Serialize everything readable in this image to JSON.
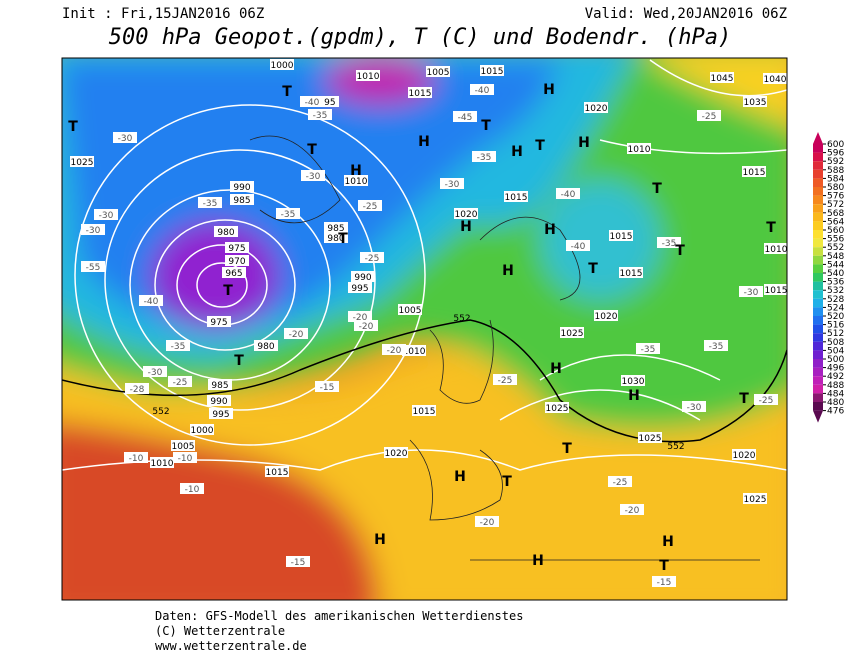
{
  "header": {
    "init": "Init : Fri,15JAN2016 06Z",
    "valid": "Valid: Wed,20JAN2016 06Z",
    "title": "500 hPa Geopot.(gpdm), T (C) und Bodendr. (hPa)"
  },
  "colorbar": {
    "ticks": [
      600,
      596,
      592,
      588,
      584,
      580,
      576,
      572,
      568,
      564,
      560,
      556,
      552,
      548,
      544,
      540,
      536,
      532,
      528,
      524,
      520,
      516,
      512,
      508,
      504,
      500,
      496,
      492,
      488,
      484,
      480,
      476
    ],
    "colors": [
      "#c8005a",
      "#d8104a",
      "#e02a3a",
      "#e8402e",
      "#ee5a26",
      "#f27020",
      "#f6881c",
      "#f8a01a",
      "#fab81c",
      "#fccc20",
      "#fde030",
      "#f0e840",
      "#c8e040",
      "#90d840",
      "#58d040",
      "#30c860",
      "#20c0a0",
      "#20c0d0",
      "#20b0e8",
      "#2090f0",
      "#2070f0",
      "#2050e8",
      "#3038e0",
      "#5028d8",
      "#7020d0",
      "#9020c8",
      "#a820c0",
      "#c020b8",
      "#d020a8",
      "#8a1870",
      "#5a0a50"
    ]
  },
  "map": {
    "pressure_labels": [
      "1000",
      "1010",
      "1005",
      "1015",
      "1015",
      "995",
      "1025",
      "1010",
      "990",
      "985",
      "980",
      "975",
      "970",
      "965",
      "975",
      "980",
      "985",
      "980",
      "990",
      "995",
      "1005",
      "1010",
      "1020",
      "1015",
      "1020",
      "1010",
      "1015",
      "1015",
      "1020",
      "1025",
      "1030",
      "1025",
      "1025",
      "1015",
      "1020",
      "1015",
      "985",
      "990",
      "995",
      "1000",
      "1005",
      "1010",
      "1015",
      "1010",
      "1015",
      "1020",
      "1025",
      "1045",
      "1040",
      "1035"
    ],
    "temperature_labels": [
      "-30",
      "-35",
      "-35",
      "-30",
      "-40",
      "-35",
      "-40",
      "-45",
      "-35",
      "-30",
      "-25",
      "-25",
      "-20",
      "-20",
      "-20",
      "-35",
      "-30",
      "-25",
      "-28",
      "-40",
      "-55",
      "-30",
      "-30",
      "-40",
      "-40",
      "-35",
      "-30",
      "-35",
      "-35",
      "-30",
      "-25",
      "-25",
      "-15",
      "-20",
      "-10",
      "-10",
      "-10",
      "-15",
      "-20",
      "-25",
      "-20",
      "-15",
      "-25"
    ],
    "contour_labels": [
      "552",
      "552",
      "552"
    ],
    "markers": [
      "T",
      "T",
      "T",
      "H",
      "H",
      "T",
      "H",
      "T",
      "H",
      "H",
      "H",
      "H",
      "T",
      "T",
      "T",
      "H",
      "T",
      "T",
      "T",
      "T",
      "H",
      "H",
      "T",
      "T",
      "H",
      "T",
      "H",
      "H",
      "H",
      "T"
    ]
  },
  "footer": {
    "line1": "Daten: GFS-Modell des amerikanischen Wetterdienstes",
    "line2": "(C) Wetterzentrale",
    "line3": "www.wetterzentrale.de"
  }
}
